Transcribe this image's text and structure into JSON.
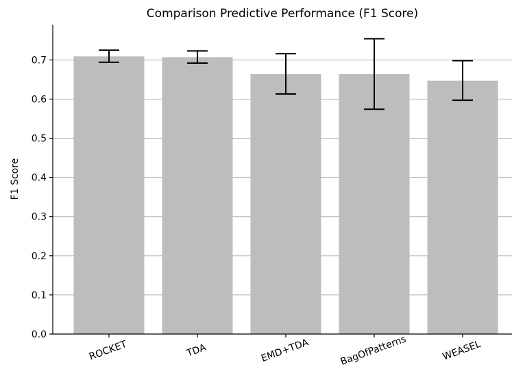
{
  "chart_data": {
    "type": "bar",
    "title": "Comparison Predictive Performance (F1 Score)",
    "xlabel": "",
    "ylabel": "F1 Score",
    "categories": [
      "ROCKET",
      "TDA",
      "EMD+TDA",
      "BagOfPatterns",
      "WEASEL"
    ],
    "values": [
      0.709,
      0.707,
      0.664,
      0.664,
      0.647
    ],
    "error_low": [
      0.694,
      0.692,
      0.613,
      0.574,
      0.597
    ],
    "error_high": [
      0.725,
      0.723,
      0.716,
      0.754,
      0.698
    ],
    "ylim": [
      0,
      0.79
    ],
    "yticks": [
      0.0,
      0.1,
      0.2,
      0.3,
      0.4,
      0.5,
      0.6,
      0.7
    ],
    "ytick_labels": [
      "0.0",
      "0.1",
      "0.2",
      "0.3",
      "0.4",
      "0.5",
      "0.6",
      "0.7"
    ],
    "grid": "horizontal",
    "bar_color": "#bdbdbd",
    "grid_color": "#b0b0b0",
    "errorbar_color": "#000000"
  }
}
